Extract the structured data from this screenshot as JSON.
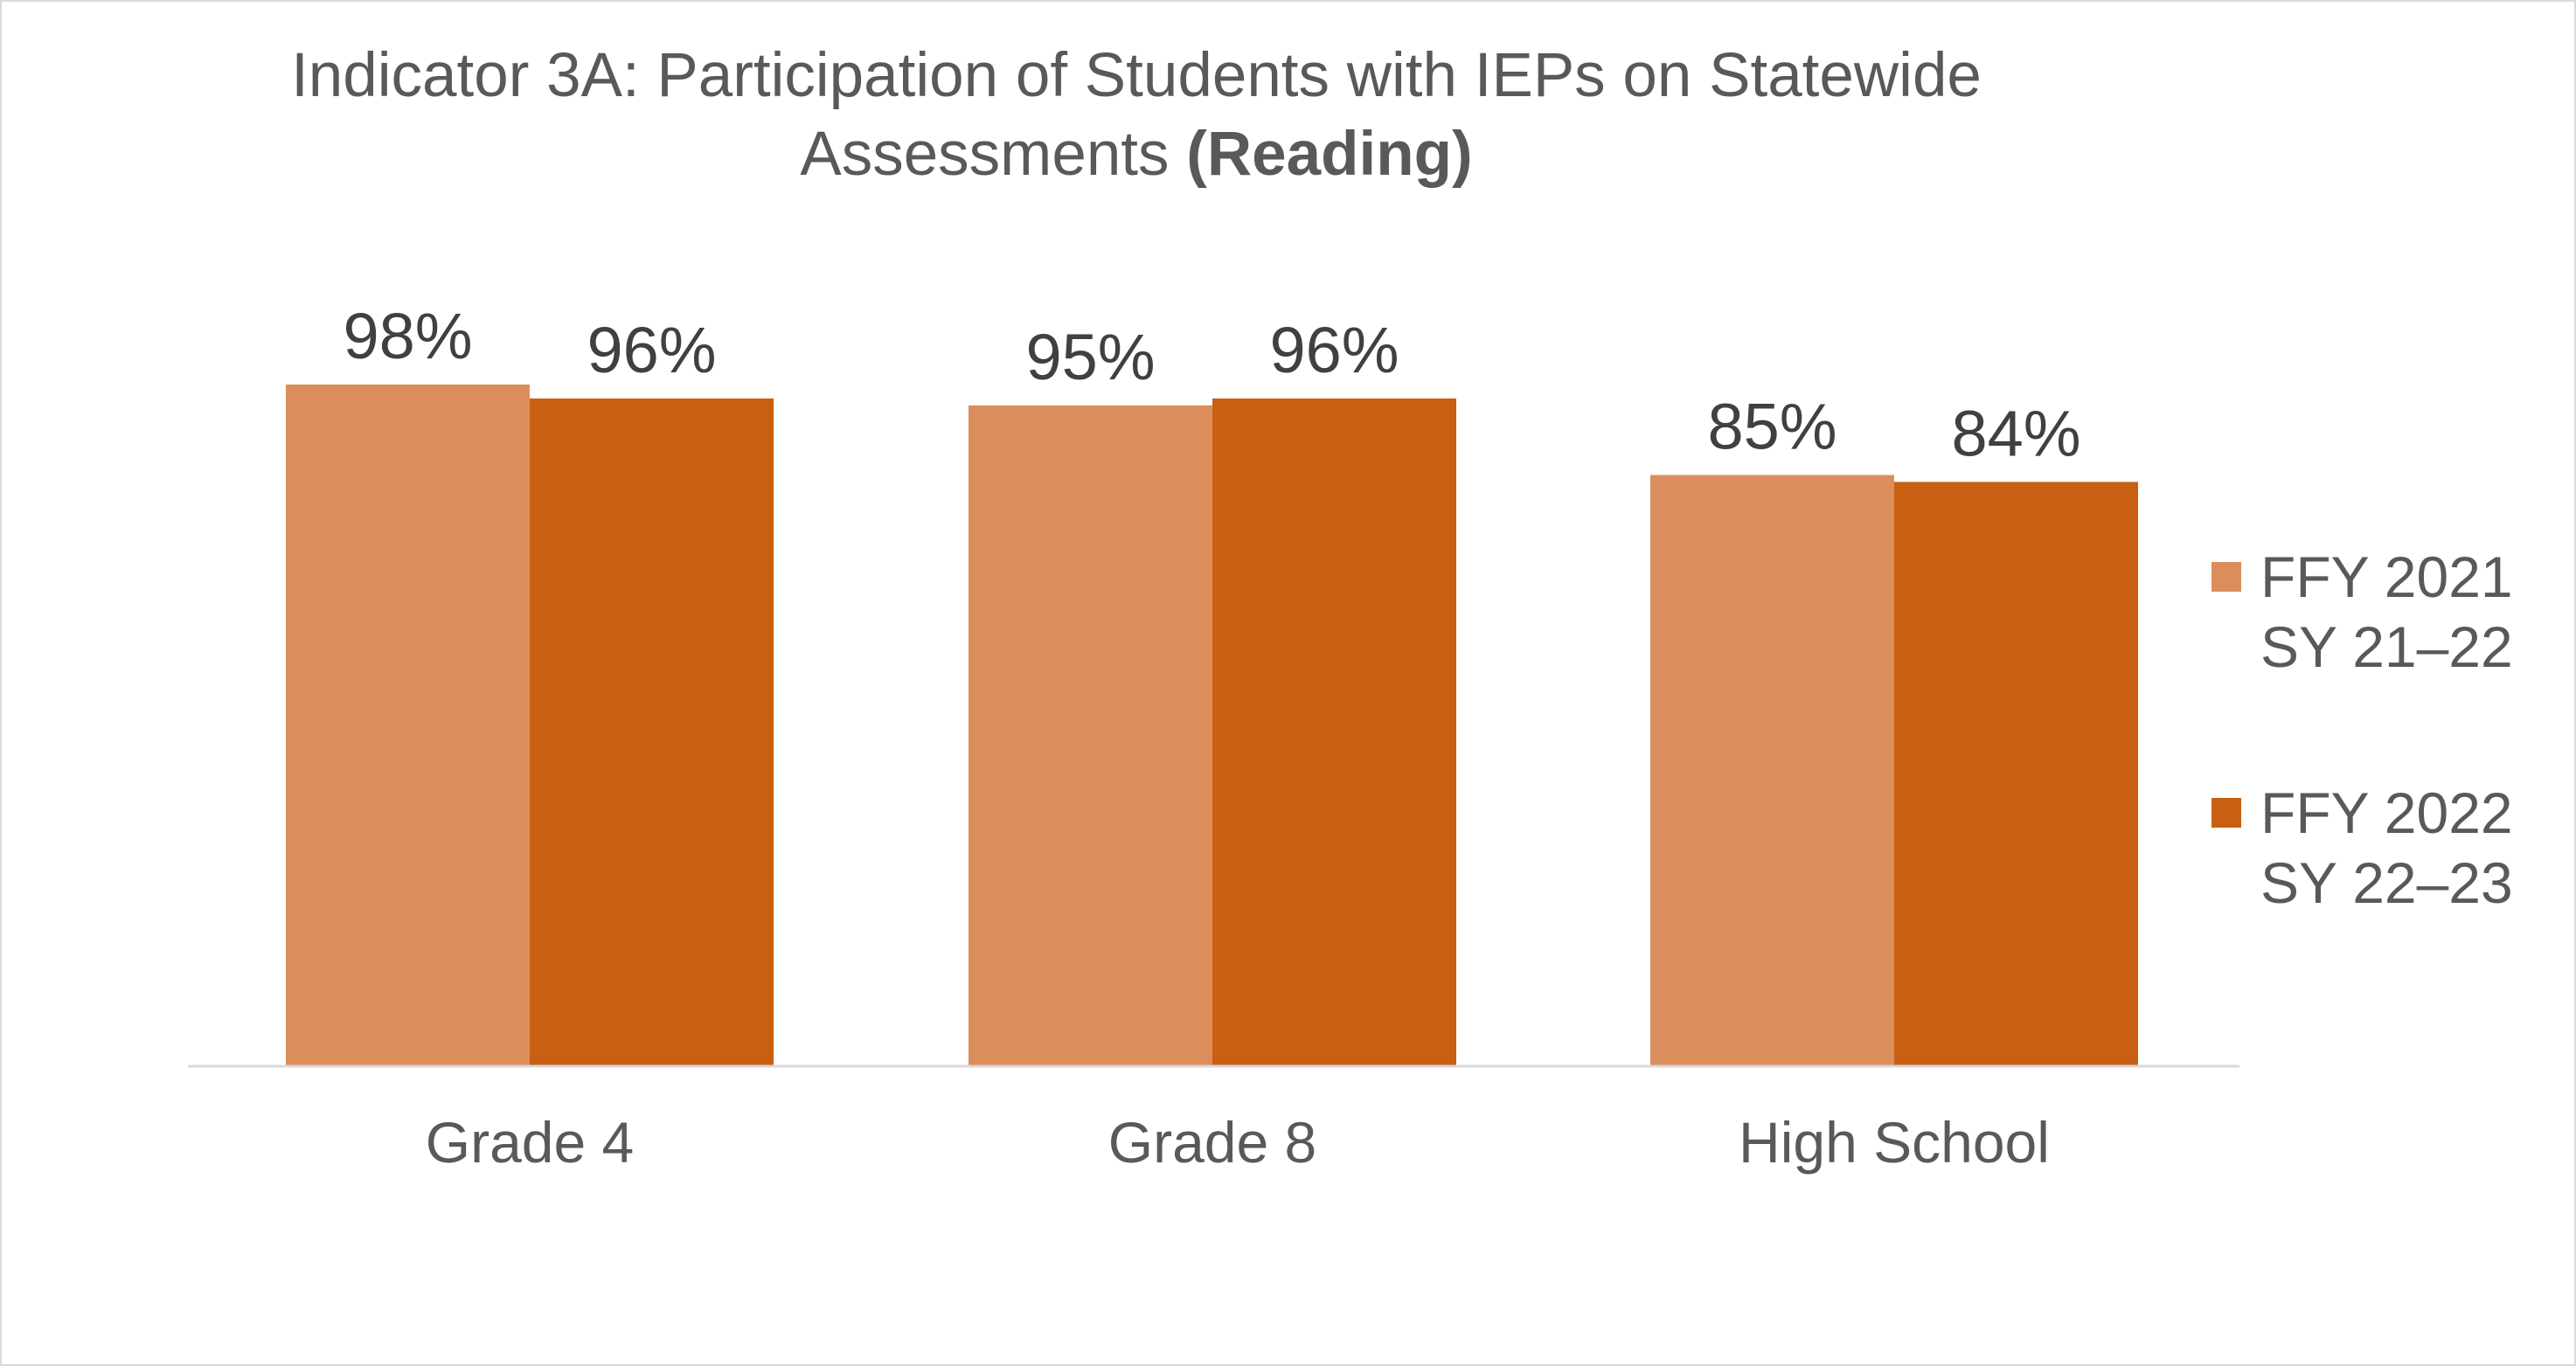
{
  "chart_data": {
    "type": "bar",
    "title_main": "Indicator 3A: Participation of Students with IEPs on Statewide Assessments ",
    "title_bold": "(Reading)",
    "categories": [
      "Grade 4",
      "Grade 8",
      "High School"
    ],
    "series": [
      {
        "name_line1": "FFY 2021",
        "name_line2": "SY 21–22",
        "color": "#DB8E5B",
        "values": [
          98,
          95,
          85
        ],
        "labels": [
          "98%",
          "95%",
          "85%"
        ]
      },
      {
        "name_line1": "FFY 2022",
        "name_line2": "SY 22–23",
        "color": "#C95F13",
        "values": [
          96,
          96,
          84
        ],
        "labels": [
          "96%",
          "96%",
          "84%"
        ]
      }
    ],
    "ylim": [
      0,
      100
    ],
    "legend_position": "right",
    "grid": false
  }
}
